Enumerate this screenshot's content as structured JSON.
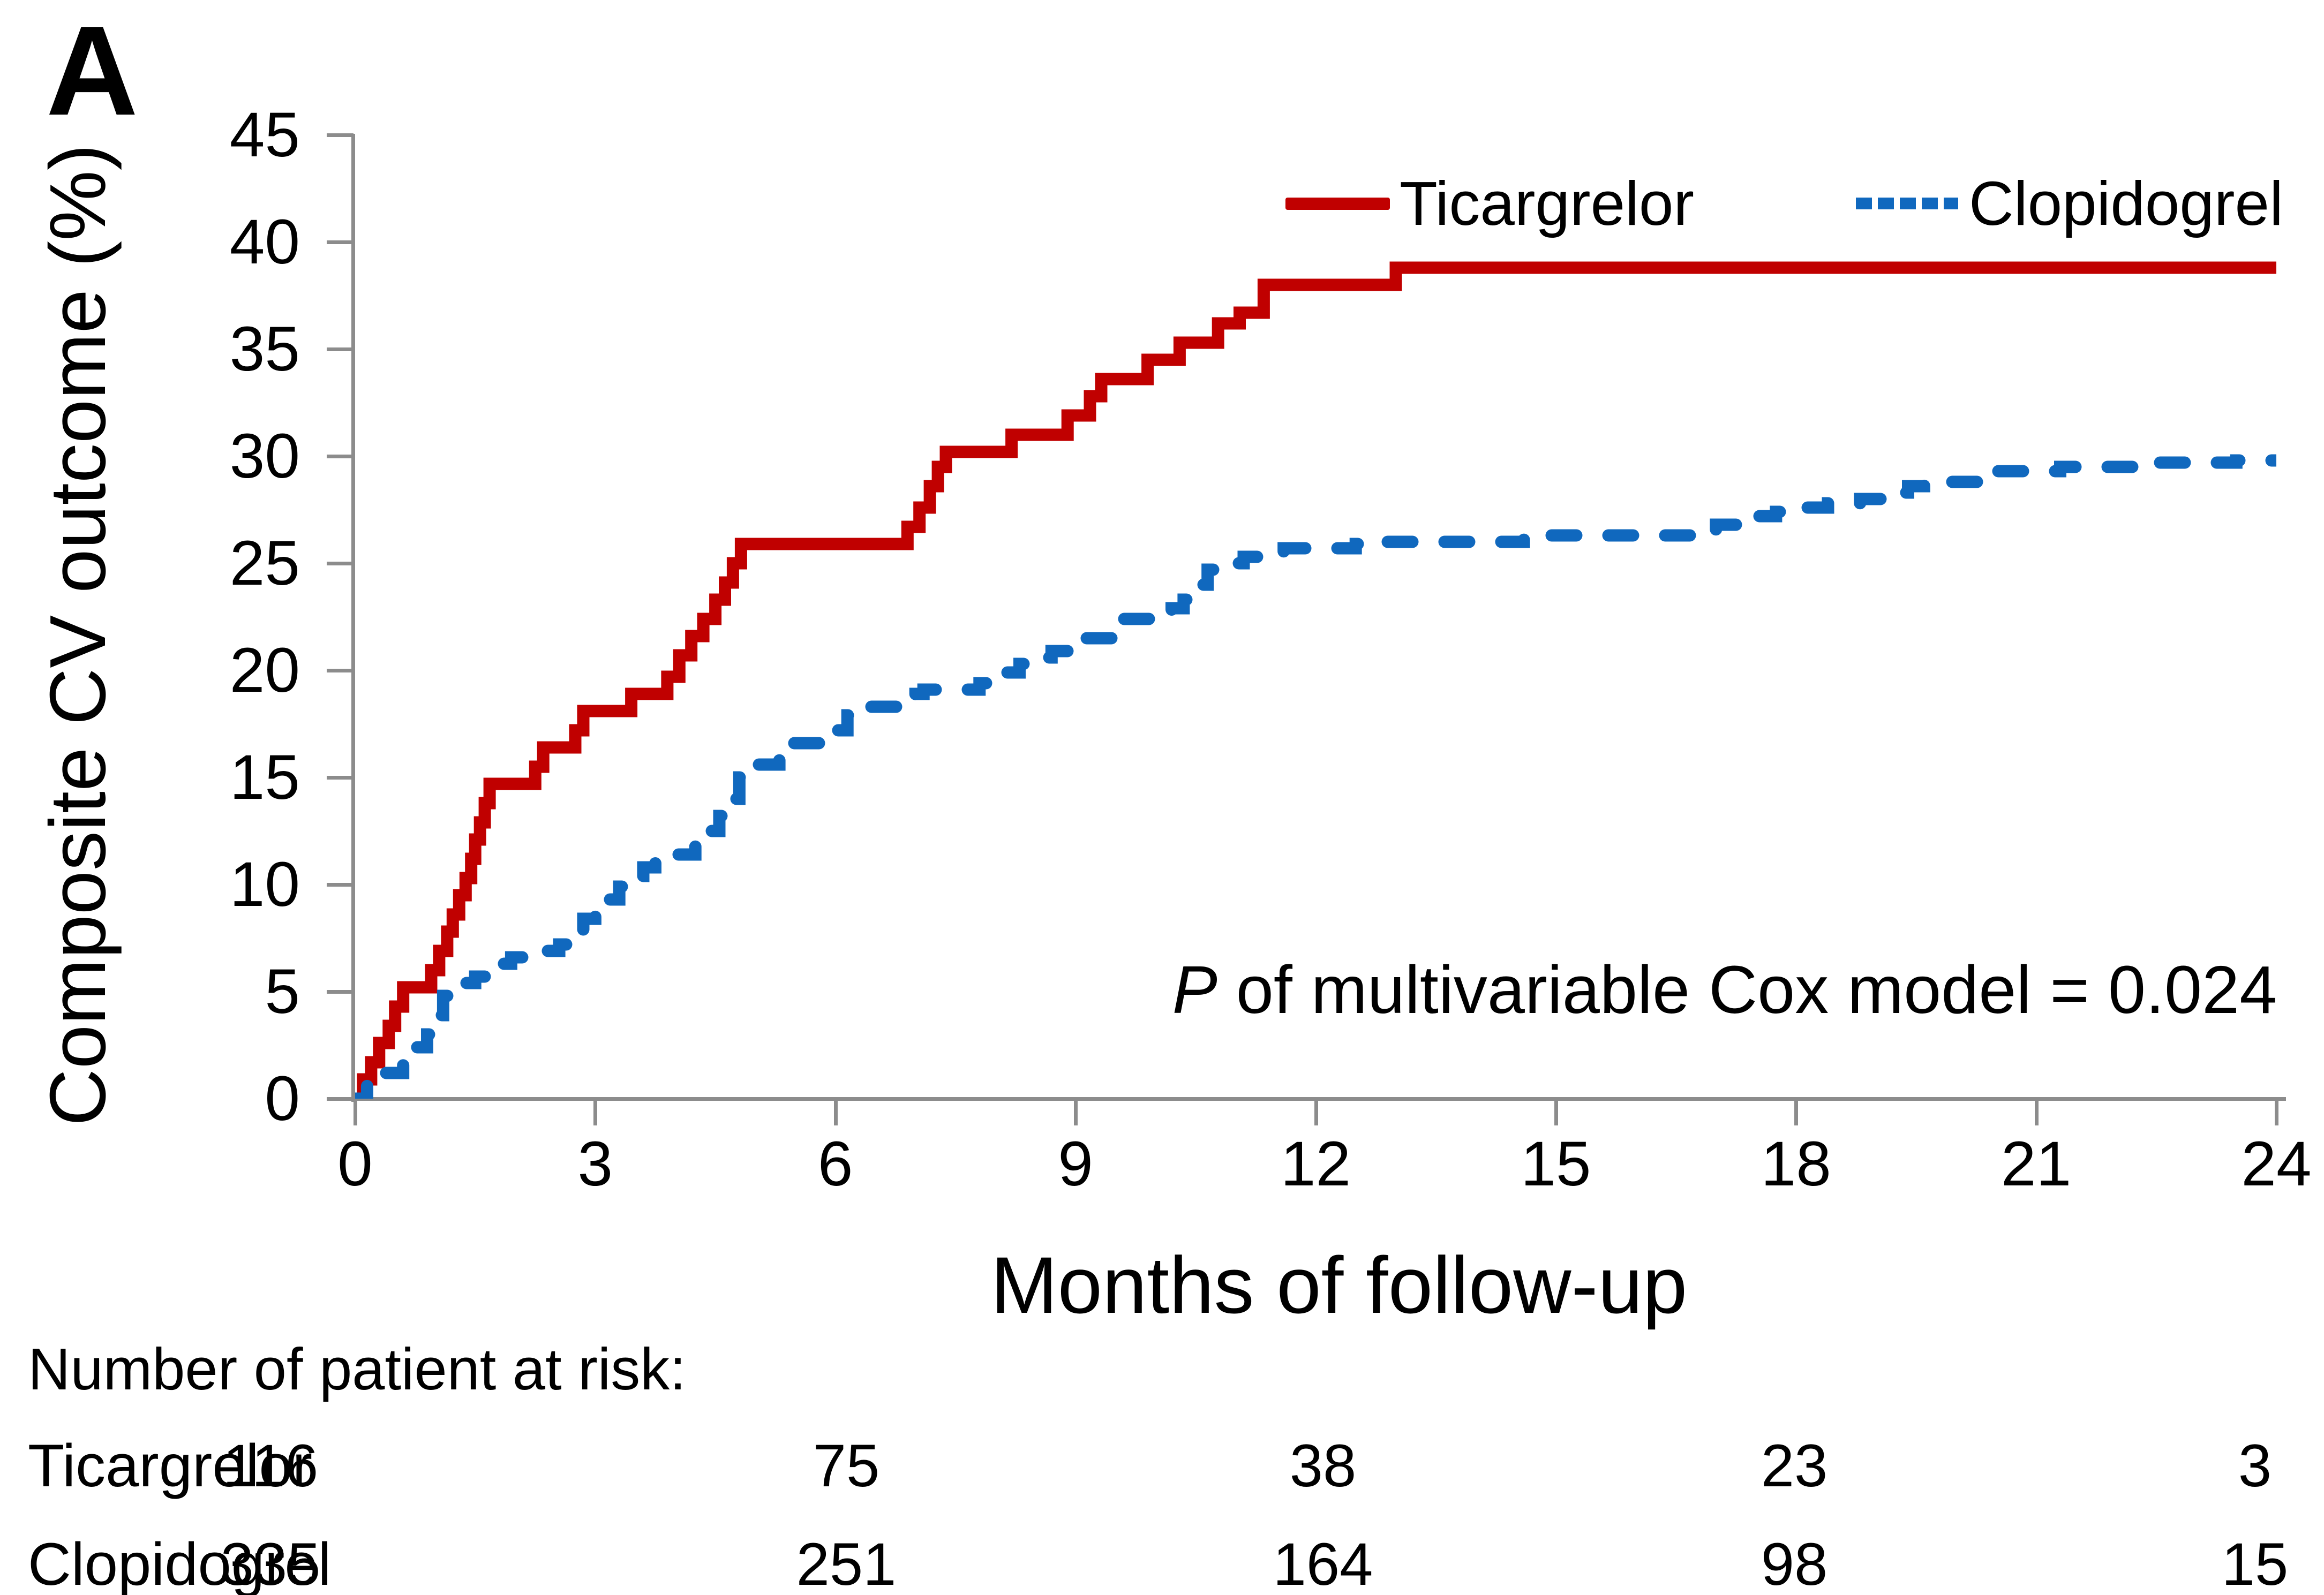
{
  "panel_label": "A",
  "chart_data": {
    "type": "line",
    "subtype": "kaplan-meier-step",
    "title": "",
    "xlabel": "Months of follow-up",
    "ylabel": "Composite CV outcome (%)",
    "xlim": [
      0,
      24
    ],
    "ylim": [
      0,
      45
    ],
    "x_ticks": [
      0,
      3,
      6,
      9,
      12,
      15,
      18,
      21,
      24
    ],
    "y_ticks": [
      0,
      5,
      10,
      15,
      20,
      25,
      30,
      35,
      40,
      45
    ],
    "grid": false,
    "legend_position": "top-right-inside",
    "annotation": {
      "italic_part": "P",
      "text_part": " of multivariable Cox model = 0.024"
    },
    "series": [
      {
        "name": "Ticargrelor",
        "color": "#c00000",
        "style": "solid",
        "points": [
          [
            0,
            0
          ],
          [
            0.1,
            0.9
          ],
          [
            0.2,
            1.7
          ],
          [
            0.3,
            2.6
          ],
          [
            0.42,
            3.4
          ],
          [
            0.5,
            4.3
          ],
          [
            0.6,
            5.2
          ],
          [
            0.95,
            6.0
          ],
          [
            1.05,
            6.9
          ],
          [
            1.15,
            7.8
          ],
          [
            1.22,
            8.6
          ],
          [
            1.3,
            9.5
          ],
          [
            1.38,
            10.3
          ],
          [
            1.45,
            11.2
          ],
          [
            1.5,
            12.1
          ],
          [
            1.56,
            12.9
          ],
          [
            1.62,
            13.8
          ],
          [
            1.68,
            14.7
          ],
          [
            2.25,
            15.5
          ],
          [
            2.35,
            16.4
          ],
          [
            2.75,
            17.2
          ],
          [
            2.85,
            18.1
          ],
          [
            3.45,
            18.9
          ],
          [
            3.9,
            19.7
          ],
          [
            4.05,
            20.7
          ],
          [
            4.2,
            21.6
          ],
          [
            4.35,
            22.4
          ],
          [
            4.5,
            23.3
          ],
          [
            4.62,
            24.1
          ],
          [
            4.72,
            25.0
          ],
          [
            4.82,
            25.9
          ],
          [
            6.9,
            26.7
          ],
          [
            7.05,
            27.6
          ],
          [
            7.18,
            28.6
          ],
          [
            7.28,
            29.5
          ],
          [
            7.38,
            30.2
          ],
          [
            8.2,
            31.0
          ],
          [
            8.9,
            31.9
          ],
          [
            9.18,
            32.8
          ],
          [
            9.32,
            33.6
          ],
          [
            9.9,
            34.5
          ],
          [
            10.3,
            35.3
          ],
          [
            10.78,
            36.2
          ],
          [
            11.05,
            36.7
          ],
          [
            11.35,
            38.0
          ],
          [
            13.0,
            38.8
          ],
          [
            24,
            38.8
          ]
        ]
      },
      {
        "name": "Clopidogrel",
        "color": "#1068be",
        "style": "dashed",
        "points": [
          [
            0,
            0
          ],
          [
            0.15,
            0.6
          ],
          [
            0.3,
            1.2
          ],
          [
            0.6,
            1.8
          ],
          [
            0.75,
            2.4
          ],
          [
            0.9,
            3.0
          ],
          [
            1.0,
            3.9
          ],
          [
            1.1,
            4.8
          ],
          [
            1.2,
            5.4
          ],
          [
            1.5,
            5.7
          ],
          [
            1.65,
            6.0
          ],
          [
            1.8,
            6.3
          ],
          [
            1.95,
            6.6
          ],
          [
            2.4,
            6.9
          ],
          [
            2.55,
            7.2
          ],
          [
            2.7,
            7.8
          ],
          [
            2.85,
            8.4
          ],
          [
            3.0,
            8.8
          ],
          [
            3.15,
            9.3
          ],
          [
            3.3,
            9.9
          ],
          [
            3.45,
            10.4
          ],
          [
            3.6,
            10.8
          ],
          [
            3.75,
            11.1
          ],
          [
            3.9,
            11.4
          ],
          [
            4.25,
            11.9
          ],
          [
            4.4,
            12.5
          ],
          [
            4.55,
            13.2
          ],
          [
            4.7,
            14.0
          ],
          [
            4.8,
            15.0
          ],
          [
            4.9,
            15.6
          ],
          [
            5.3,
            16.2
          ],
          [
            5.45,
            16.6
          ],
          [
            6.0,
            17.2
          ],
          [
            6.15,
            17.9
          ],
          [
            6.25,
            18.3
          ],
          [
            6.8,
            18.7
          ],
          [
            7.0,
            18.9
          ],
          [
            7.1,
            19.1
          ],
          [
            7.8,
            19.4
          ],
          [
            7.95,
            19.6
          ],
          [
            8.1,
            19.9
          ],
          [
            8.3,
            20.3
          ],
          [
            8.5,
            20.6
          ],
          [
            8.7,
            20.9
          ],
          [
            8.9,
            21.2
          ],
          [
            9.0,
            21.5
          ],
          [
            9.45,
            22.2
          ],
          [
            9.55,
            22.4
          ],
          [
            10.2,
            22.9
          ],
          [
            10.35,
            23.3
          ],
          [
            10.5,
            24.0
          ],
          [
            10.65,
            24.7
          ],
          [
            10.85,
            25.0
          ],
          [
            11.1,
            25.3
          ],
          [
            11.35,
            25.5
          ],
          [
            11.6,
            25.7
          ],
          [
            12.5,
            25.9
          ],
          [
            12.9,
            26.0
          ],
          [
            14.6,
            26.3
          ],
          [
            17.0,
            26.8
          ],
          [
            17.3,
            27.2
          ],
          [
            17.75,
            27.4
          ],
          [
            18.05,
            27.6
          ],
          [
            18.4,
            27.8
          ],
          [
            18.8,
            28.0
          ],
          [
            19.1,
            28.3
          ],
          [
            19.4,
            28.6
          ],
          [
            19.6,
            28.8
          ],
          [
            20.45,
            29.3
          ],
          [
            21.3,
            29.5
          ],
          [
            22.3,
            29.7
          ],
          [
            23.5,
            29.8
          ],
          [
            24,
            29.8
          ]
        ]
      }
    ]
  },
  "risk_table": {
    "title": "Number of patient at risk:",
    "months": [
      0,
      6,
      12,
      18,
      24
    ],
    "rows": [
      {
        "label": "Ticargrelor",
        "values": [
          "116",
          "75",
          "38",
          "23",
          "3"
        ]
      },
      {
        "label": "Clopidogrel",
        "values": [
          "335",
          "251",
          "164",
          "98",
          "15"
        ]
      }
    ]
  },
  "colors": {
    "ticargrelor": "#c00000",
    "clopidogrel": "#1068be",
    "axis": "#8c8c8c",
    "text": "#000000"
  }
}
